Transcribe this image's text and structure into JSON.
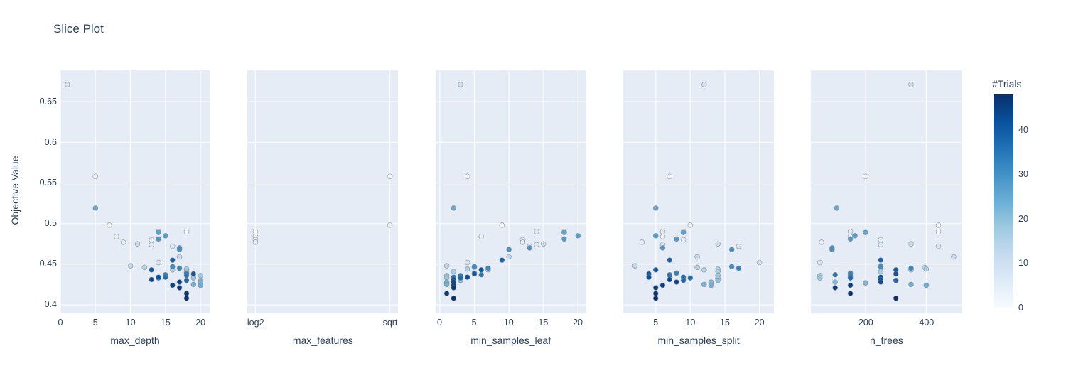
{
  "title": "Slice Plot",
  "yaxis": {
    "label": "Objective Value",
    "range": [
      0.3895,
      0.6885
    ],
    "ticks": [
      0.4,
      0.45,
      0.5,
      0.55,
      0.6,
      0.65
    ],
    "tick_labels": [
      "0.4",
      "0.45",
      "0.5",
      "0.55",
      "0.6",
      "0.65"
    ]
  },
  "colorbar": {
    "title": "#Trials",
    "ticks": [
      0,
      10,
      20,
      30,
      40
    ],
    "cmin": 0,
    "cmax": 48,
    "colorscale": [
      "#f7fbff",
      "#deebf7",
      "#c6dbef",
      "#9ecae1",
      "#6baed6",
      "#4292c6",
      "#2171b5",
      "#08519c",
      "#08306b"
    ]
  },
  "style": {
    "plot_bg": "#e5ecf6",
    "grid_color": "#ffffff",
    "font_color": "#2a3f5f",
    "marker_outline": "#808080"
  },
  "chart_data": {
    "type": "scatter",
    "title": "Slice Plot",
    "ylabel": "Objective Value",
    "color_label": "#Trials",
    "subplots": [
      {
        "param": "max_depth",
        "axis_type": "linear",
        "range": [
          -0.1,
          21.4
        ],
        "ticks": [
          0,
          5,
          10,
          15,
          20
        ]
      },
      {
        "param": "max_features",
        "axis_type": "categorical",
        "range": [
          -0.06,
          1.06
        ],
        "categories": [
          "log2",
          "sqrt"
        ]
      },
      {
        "param": "min_samples_leaf",
        "axis_type": "linear",
        "range": [
          -0.6,
          21.2
        ],
        "ticks": [
          0,
          5,
          10,
          15,
          20
        ]
      },
      {
        "param": "min_samples_split",
        "axis_type": "linear",
        "range": [
          0.3,
          22.1
        ],
        "ticks": [
          5,
          10,
          15,
          20
        ]
      },
      {
        "param": "n_trees",
        "axis_type": "linear",
        "range": [
          20,
          516
        ],
        "ticks": [
          200,
          400
        ]
      }
    ],
    "trials": [
      {
        "number": 0,
        "objective": 0.49,
        "max_depth": 18,
        "max_features": "log2",
        "min_samples_leaf": 18,
        "min_samples_split": 9,
        "n_trees": 440
      },
      {
        "number": 1,
        "objective": 0.558,
        "max_depth": 5,
        "max_features": "sqrt",
        "min_samples_leaf": 4,
        "min_samples_split": 7,
        "n_trees": 200
      },
      {
        "number": 2,
        "objective": 0.498,
        "max_depth": 7,
        "max_features": "sqrt",
        "min_samples_leaf": 9,
        "min_samples_split": 10,
        "n_trees": 440
      },
      {
        "number": 3,
        "objective": 0.484,
        "max_depth": 8,
        "max_features": "log2",
        "min_samples_leaf": 6,
        "min_samples_split": 6,
        "n_trees": 150
      },
      {
        "number": 4,
        "objective": 0.48,
        "max_depth": 13,
        "max_features": "log2",
        "min_samples_leaf": 12,
        "min_samples_split": 9,
        "n_trees": 250
      },
      {
        "number": 5,
        "objective": 0.477,
        "max_depth": 9,
        "max_features": "log2",
        "min_samples_leaf": 12,
        "min_samples_split": 3,
        "n_trees": 55
      },
      {
        "number": 6,
        "objective": 0.49,
        "max_depth": 14,
        "min_samples_leaf": 14,
        "min_samples_split": 6,
        "n_trees": 150
      },
      {
        "number": 7,
        "objective": 0.474,
        "max_depth": 13,
        "min_samples_leaf": 14,
        "min_samples_split": 6,
        "n_trees": 250
      },
      {
        "number": 8,
        "objective": 0.472,
        "max_depth": 16,
        "min_samples_leaf": 13,
        "min_samples_split": 17,
        "n_trees": 440
      },
      {
        "number": 9,
        "objective": 0.452,
        "max_depth": 14,
        "min_samples_leaf": 4,
        "min_samples_split": 20,
        "n_trees": 50
      },
      {
        "number": 10,
        "objective": 0.671,
        "max_depth": 1,
        "min_samples_leaf": 3,
        "min_samples_split": 12,
        "n_trees": 350
      },
      {
        "number": 11,
        "objective": 0.475,
        "max_depth": 11,
        "min_samples_leaf": 15,
        "min_samples_split": 14,
        "n_trees": 350
      },
      {
        "number": 12,
        "objective": 0.459,
        "max_depth": 17,
        "min_samples_leaf": 10,
        "min_samples_split": 11,
        "n_trees": 490
      },
      {
        "number": 13,
        "objective": 0.448,
        "max_depth": 10,
        "min_samples_leaf": 1,
        "min_samples_split": 2,
        "n_trees": 250
      },
      {
        "number": 14,
        "objective": 0.446,
        "max_depth": 12,
        "min_samples_leaf": 5,
        "min_samples_split": 11,
        "n_trees": 395
      },
      {
        "number": 15,
        "objective": 0.443,
        "max_depth": 16,
        "min_samples_leaf": 7,
        "min_samples_split": 12,
        "n_trees": 350
      },
      {
        "number": 16,
        "objective": 0.444,
        "max_depth": 18,
        "min_samples_leaf": 4,
        "min_samples_split": 14,
        "n_trees": 400
      },
      {
        "number": 17,
        "objective": 0.441,
        "max_depth": 18,
        "min_samples_leaf": 2,
        "min_samples_split": 14,
        "n_trees": 250
      },
      {
        "number": 18,
        "objective": 0.436,
        "max_depth": 20,
        "min_samples_leaf": 1,
        "min_samples_split": 14,
        "n_trees": 50
      },
      {
        "number": 19,
        "objective": 0.433,
        "max_depth": 19,
        "min_samples_leaf": 1,
        "min_samples_split": 14,
        "n_trees": 50
      },
      {
        "number": 20,
        "objective": 0.43,
        "max_depth": 20,
        "min_samples_leaf": 3,
        "min_samples_split": 14,
        "n_trees": 300
      },
      {
        "number": 21,
        "objective": 0.428,
        "max_depth": 20,
        "min_samples_leaf": 1,
        "min_samples_split": 13,
        "n_trees": 100
      },
      {
        "number": 22,
        "objective": 0.427,
        "max_depth": 20,
        "min_samples_leaf": 1,
        "min_samples_split": 13,
        "n_trees": 200
      },
      {
        "number": 23,
        "objective": 0.425,
        "max_depth": 19,
        "min_samples_leaf": 1,
        "min_samples_split": 12,
        "n_trees": 350
      },
      {
        "number": 24,
        "objective": 0.424,
        "max_depth": 20,
        "min_samples_leaf": 2,
        "min_samples_split": 13,
        "n_trees": 400
      },
      {
        "number": 25,
        "objective": 0.519,
        "max_depth": 5,
        "min_samples_leaf": 2,
        "min_samples_split": 5,
        "n_trees": 105
      },
      {
        "number": 26,
        "objective": 0.489,
        "max_depth": 14,
        "min_samples_leaf": 18,
        "min_samples_split": 9,
        "n_trees": 200
      },
      {
        "number": 27,
        "objective": 0.485,
        "max_depth": 15,
        "min_samples_leaf": 20,
        "min_samples_split": 5,
        "n_trees": 165
      },
      {
        "number": 28,
        "objective": 0.481,
        "max_depth": 14,
        "min_samples_leaf": 18,
        "min_samples_split": 8,
        "n_trees": 150
      },
      {
        "number": 29,
        "objective": 0.47,
        "max_depth": 17,
        "min_samples_leaf": 13,
        "min_samples_split": 6,
        "n_trees": 90
      },
      {
        "number": 30,
        "objective": 0.468,
        "max_depth": 17,
        "min_samples_leaf": 10,
        "min_samples_split": 16,
        "n_trees": 90
      },
      {
        "number": 31,
        "objective": 0.447,
        "max_depth": 16,
        "min_samples_leaf": 5,
        "min_samples_split": 16,
        "n_trees": 250
      },
      {
        "number": 32,
        "objective": 0.445,
        "max_depth": 17,
        "min_samples_leaf": 7,
        "min_samples_split": 17,
        "n_trees": 350
      },
      {
        "number": 33,
        "objective": 0.439,
        "max_depth": 18,
        "min_samples_leaf": 5,
        "min_samples_split": 8,
        "n_trees": 150
      },
      {
        "number": 34,
        "objective": 0.437,
        "max_depth": 15,
        "min_samples_leaf": 6,
        "min_samples_split": 7,
        "n_trees": 100
      },
      {
        "number": 35,
        "objective": 0.436,
        "max_depth": 18,
        "min_samples_leaf": 3,
        "min_samples_split": 7,
        "n_trees": 150
      },
      {
        "number": 36,
        "objective": 0.434,
        "max_depth": 15,
        "min_samples_leaf": 2,
        "min_samples_split": 9,
        "n_trees": 150
      },
      {
        "number": 37,
        "objective": 0.433,
        "max_depth": 14,
        "min_samples_leaf": 3,
        "min_samples_split": 10,
        "n_trees": 150
      },
      {
        "number": 38,
        "objective": 0.43,
        "max_depth": 18,
        "min_samples_leaf": 2,
        "min_samples_split": 9,
        "n_trees": 300
      },
      {
        "number": 39,
        "objective": 0.455,
        "max_depth": 16,
        "min_samples_leaf": 9,
        "min_samples_split": 7,
        "n_trees": 250
      },
      {
        "number": 40,
        "objective": 0.443,
        "max_depth": 13,
        "min_samples_leaf": 6,
        "min_samples_split": 5,
        "n_trees": 300
      },
      {
        "number": 41,
        "objective": 0.438,
        "max_depth": 19,
        "min_samples_leaf": 5,
        "min_samples_split": 4,
        "n_trees": 300
      },
      {
        "number": 42,
        "objective": 0.434,
        "max_depth": 14,
        "min_samples_leaf": 4,
        "min_samples_split": 4,
        "n_trees": 250
      },
      {
        "number": 43,
        "objective": 0.431,
        "max_depth": 13,
        "min_samples_leaf": 2,
        "min_samples_split": 7,
        "n_trees": 250
      },
      {
        "number": 44,
        "objective": 0.428,
        "max_depth": 17,
        "min_samples_leaf": 2,
        "min_samples_split": 8,
        "n_trees": 250
      },
      {
        "number": 45,
        "objective": 0.424,
        "max_depth": 16,
        "min_samples_leaf": 2,
        "min_samples_split": 6,
        "n_trees": 150
      },
      {
        "number": 46,
        "objective": 0.421,
        "max_depth": 17,
        "min_samples_leaf": 2,
        "min_samples_split": 5,
        "n_trees": 100
      },
      {
        "number": 47,
        "objective": 0.414,
        "max_depth": 18,
        "min_samples_leaf": 1,
        "min_samples_split": 5,
        "n_trees": 150
      },
      {
        "number": 48,
        "objective": 0.408,
        "max_depth": 18,
        "min_samples_leaf": 2,
        "min_samples_split": 5,
        "n_trees": 300
      }
    ]
  }
}
